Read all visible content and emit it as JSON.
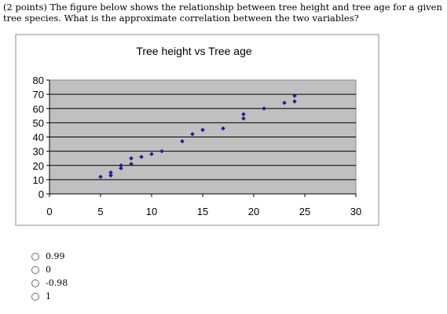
{
  "question": {
    "text": "(2 points) The figure below shows the relationship between tree height and tree age for a given tree species. What is the approximate correlation between the two variables?"
  },
  "options": [
    {
      "label": "0.99"
    },
    {
      "label": "0"
    },
    {
      "label": "-0.98"
    },
    {
      "label": "1"
    }
  ],
  "chart_data": {
    "type": "scatter",
    "title": "Tree height vs Tree age",
    "xlabel": "",
    "ylabel": "",
    "xlim": [
      0,
      30
    ],
    "ylim": [
      0,
      80
    ],
    "xticks": [
      0,
      5,
      10,
      15,
      20,
      25,
      30
    ],
    "yticks": [
      0,
      10,
      20,
      30,
      40,
      50,
      60,
      70,
      80
    ],
    "grid": true,
    "legend": "none",
    "colors": {
      "marker": "#1f1f8f",
      "plot_bg": "#c0c0c0",
      "frame": "#8a8a8a"
    },
    "points": [
      {
        "x": 5,
        "y": 12
      },
      {
        "x": 6,
        "y": 13
      },
      {
        "x": 6,
        "y": 15
      },
      {
        "x": 7,
        "y": 18
      },
      {
        "x": 7,
        "y": 20
      },
      {
        "x": 8,
        "y": 21
      },
      {
        "x": 8,
        "y": 25
      },
      {
        "x": 9,
        "y": 26
      },
      {
        "x": 10,
        "y": 28
      },
      {
        "x": 11,
        "y": 30
      },
      {
        "x": 13,
        "y": 37
      },
      {
        "x": 14,
        "y": 42
      },
      {
        "x": 15,
        "y": 45
      },
      {
        "x": 17,
        "y": 46
      },
      {
        "x": 19,
        "y": 53
      },
      {
        "x": 19,
        "y": 56
      },
      {
        "x": 21,
        "y": 60
      },
      {
        "x": 23,
        "y": 64
      },
      {
        "x": 24,
        "y": 65
      },
      {
        "x": 24,
        "y": 69
      }
    ]
  }
}
